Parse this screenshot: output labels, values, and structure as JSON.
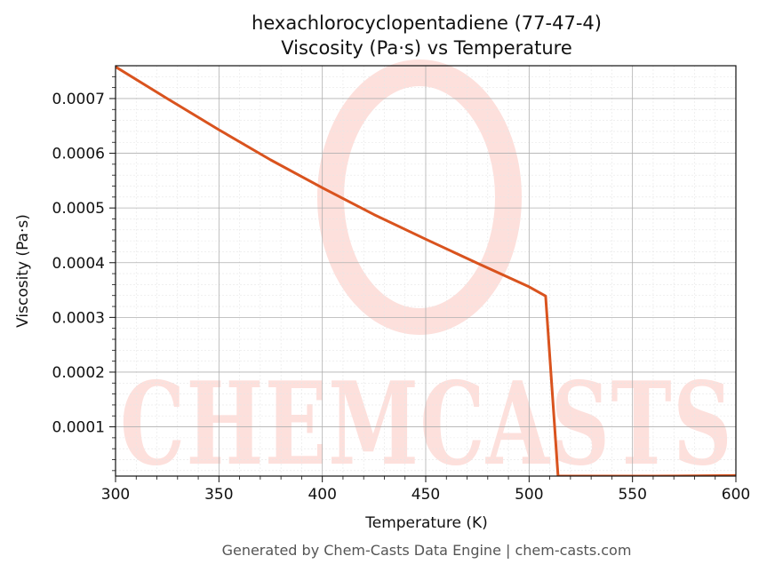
{
  "chart_data": {
    "type": "line",
    "title": "hexachlorocyclopentadiene (77-47-4)",
    "subtitle": "Viscosity (Pa·s) vs Temperature",
    "xlabel": "Temperature (K)",
    "ylabel": "Viscosity (Pa·s)",
    "xlim": [
      300,
      600
    ],
    "ylim": [
      1e-05,
      0.00076
    ],
    "x_ticks": [
      300,
      350,
      400,
      450,
      500,
      550,
      600
    ],
    "x_tick_labels": [
      "300",
      "350",
      "400",
      "450",
      "500",
      "550",
      "600"
    ],
    "y_ticks": [
      0.0001,
      0.0002,
      0.0003,
      0.0004,
      0.0005,
      0.0006,
      0.0007
    ],
    "y_tick_labels": [
      "0.0001",
      "0.0002",
      "0.0003",
      "0.0004",
      "0.0005",
      "0.0006",
      "0.0007"
    ],
    "grid": true,
    "series": [
      {
        "color": "#d9531e",
        "x": [
          300,
          325,
          350,
          375,
          400,
          425,
          450,
          475,
          500,
          508,
          514,
          530,
          560,
          600
        ],
        "y": [
          0.000758,
          0.0007,
          0.000643,
          0.000588,
          0.000537,
          0.000488,
          0.000443,
          0.000399,
          0.000356,
          0.000339,
          1e-05,
          1e-05,
          1e-05,
          1.1e-05
        ]
      }
    ]
  },
  "watermark": {
    "text": "CHEMCASTS",
    "color": "#fde0dc"
  },
  "footer": "Generated by Chem-Casts Data Engine | chem-casts.com"
}
